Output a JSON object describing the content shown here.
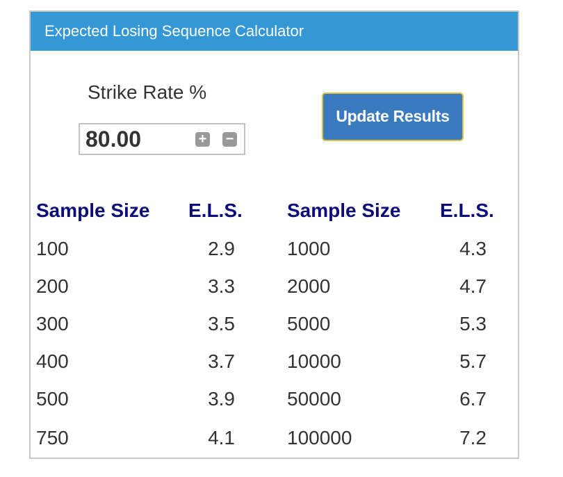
{
  "header": {
    "title": "Expected Losing Sequence Calculator"
  },
  "strike_rate": {
    "label": "Strike Rate %",
    "value": "80.00",
    "plus_symbol": "+",
    "minus_symbol": "−"
  },
  "update_button": {
    "label": "Update Results"
  },
  "table": {
    "headers": [
      "Sample Size",
      "E.L.S.",
      "Sample Size",
      "E.L.S."
    ],
    "left_rows": [
      {
        "sample": "100",
        "els": "2.9"
      },
      {
        "sample": "200",
        "els": "3.3"
      },
      {
        "sample": "300",
        "els": "3.5"
      },
      {
        "sample": "400",
        "els": "3.7"
      },
      {
        "sample": "500",
        "els": "3.9"
      },
      {
        "sample": "750",
        "els": "4.1"
      }
    ],
    "right_rows": [
      {
        "sample": "1000",
        "els": "4.3"
      },
      {
        "sample": "2000",
        "els": "4.7"
      },
      {
        "sample": "5000",
        "els": "5.3"
      },
      {
        "sample": "10000",
        "els": "5.7"
      },
      {
        "sample": "50000",
        "els": "6.7"
      },
      {
        "sample": "100000",
        "els": "7.2"
      }
    ]
  },
  "colors": {
    "header_bg": "#3498d6",
    "button_bg": "#3a7bbf",
    "button_border": "#e3c23a",
    "column_header": "#0b0b7a"
  },
  "icons": {
    "plus": "plus-icon",
    "minus": "minus-icon"
  }
}
